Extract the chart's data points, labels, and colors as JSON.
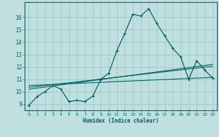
{
  "xlabel": "Humidex (Indice chaleur)",
  "bg_color": "#c0e0e0",
  "grid_color": "#98c8c8",
  "line_color": "#005f5f",
  "xlim": [
    -0.5,
    23.5
  ],
  "ylim": [
    8.5,
    17.2
  ],
  "xticks": [
    0,
    1,
    2,
    3,
    4,
    5,
    6,
    7,
    8,
    9,
    10,
    11,
    12,
    13,
    14,
    15,
    16,
    17,
    18,
    19,
    20,
    21,
    22,
    23
  ],
  "yticks": [
    9,
    10,
    11,
    12,
    13,
    14,
    15,
    16
  ],
  "main_x": [
    0,
    1,
    2,
    3,
    4,
    5,
    6,
    7,
    8,
    9,
    10,
    11,
    12,
    13,
    14,
    15,
    16,
    17,
    18,
    19,
    20,
    21,
    22,
    23
  ],
  "main_y": [
    8.9,
    9.6,
    10.0,
    10.5,
    10.2,
    9.2,
    9.3,
    9.2,
    9.65,
    11.0,
    11.5,
    13.3,
    14.7,
    16.25,
    16.1,
    16.7,
    15.5,
    14.5,
    13.5,
    12.8,
    11.0,
    12.5,
    11.75,
    11.1
  ],
  "trend1_x": [
    0,
    23
  ],
  "trend1_y": [
    10.2,
    12.2
  ],
  "trend2_x": [
    0,
    23
  ],
  "trend2_y": [
    10.35,
    12.05
  ],
  "trend3_x": [
    0,
    23
  ],
  "trend3_y": [
    10.5,
    11.15
  ]
}
